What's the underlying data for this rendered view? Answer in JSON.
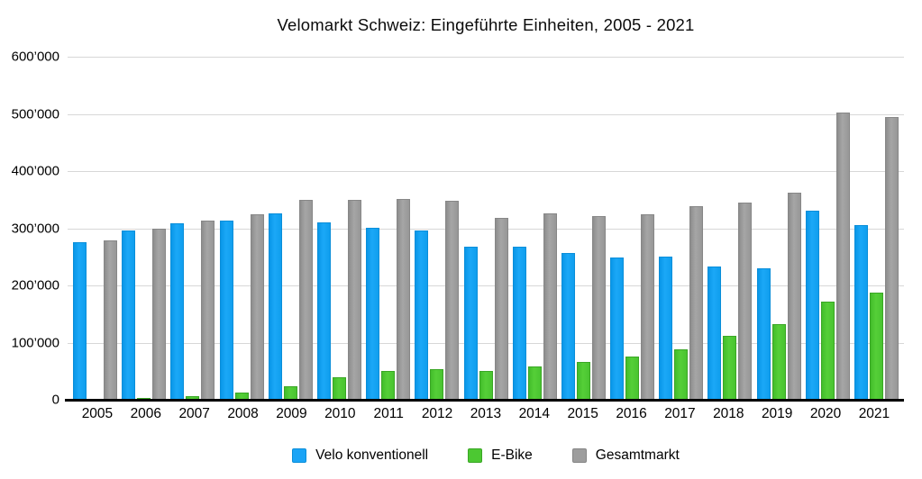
{
  "chart_data": {
    "type": "bar",
    "title": "Velomarkt Schweiz: Eingeführte Einheiten, 2005 - 2021",
    "categories": [
      "2005",
      "2006",
      "2007",
      "2008",
      "2009",
      "2010",
      "2011",
      "2012",
      "2013",
      "2014",
      "2015",
      "2016",
      "2017",
      "2018",
      "2019",
      "2020",
      "2021"
    ],
    "series": [
      {
        "name": "Velo konventionell",
        "color": "#1ba4f6",
        "values": [
          275000,
          296000,
          308000,
          313000,
          326000,
          311000,
          301000,
          296000,
          268000,
          268000,
          256000,
          249000,
          250000,
          233000,
          230000,
          330000,
          306000
        ]
      },
      {
        "name": "E-Bike",
        "color": "#4cc832",
        "values": [
          2000,
          3000,
          6000,
          12000,
          24000,
          39000,
          50000,
          53000,
          50000,
          58000,
          66000,
          76000,
          88000,
          112000,
          133000,
          171000,
          187000
        ]
      },
      {
        "name": "Gesamtmarkt",
        "color": "#9d9d9d",
        "values": [
          278000,
          300000,
          314000,
          325000,
          350000,
          350000,
          351000,
          348000,
          318000,
          326000,
          322000,
          324000,
          338000,
          345000,
          363000,
          502000,
          494000
        ]
      }
    ],
    "xlabel": "",
    "ylabel": "",
    "ylim": [
      0,
      600000
    ],
    "ytick_interval": 100000,
    "ytick_labels": [
      "0",
      "100’000",
      "200’000",
      "300’000",
      "400’000",
      "500’000",
      "600’000"
    ],
    "grid": "horizontal",
    "legend_position": "bottom",
    "legend": [
      "Velo konventionell",
      "E-Bike",
      "Gesamtmarkt"
    ]
  }
}
